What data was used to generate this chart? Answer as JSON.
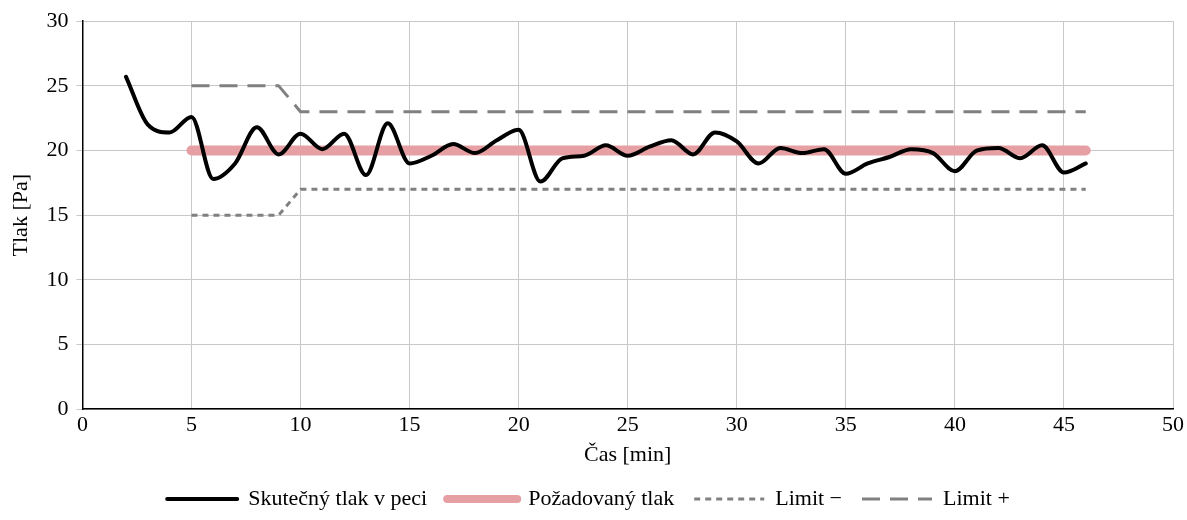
{
  "chart_data": {
    "type": "line",
    "xlabel": "Čas [min]",
    "ylabel": "Tlak [Pa]",
    "xlim": [
      0,
      50
    ],
    "xticks": [
      0,
      5,
      10,
      15,
      20,
      25,
      30,
      35,
      40,
      45,
      50
    ],
    "ylim": [
      0,
      30
    ],
    "yticks": [
      0,
      5,
      10,
      15,
      20,
      25,
      30
    ],
    "grid": true,
    "legend": "bottom",
    "marker": "none",
    "series": [
      {
        "name": "Skutečný tlak v peci",
        "color": "#000000",
        "line_style": "solid",
        "x": [
          2,
          3,
          4,
          5,
          6,
          7,
          8,
          9,
          10,
          11,
          12,
          13,
          14,
          15,
          16,
          17,
          18,
          19,
          20,
          21,
          22,
          23,
          24,
          25,
          26,
          27,
          28,
          29,
          30,
          31,
          32,
          33,
          34,
          35,
          36,
          37,
          38,
          39,
          40,
          41,
          42,
          43,
          44,
          45,
          46
        ],
        "values": [
          25.7,
          22,
          21.4,
          22.6,
          17.8,
          19,
          21.8,
          19.7,
          21.3,
          20.1,
          21.3,
          18.1,
          22.1,
          19,
          19.6,
          20.5,
          19.8,
          20.8,
          21.6,
          17.6,
          19.4,
          19.6,
          20.4,
          19.6,
          20.3,
          20.8,
          19.7,
          21.4,
          20.7,
          19,
          20.2,
          19.8,
          20.1,
          18.2,
          19,
          19.5,
          20.1,
          19.8,
          18.4,
          20,
          20.2,
          19.4,
          20.4,
          18.3,
          19
        ]
      },
      {
        "name": "Požadovaný tlak",
        "color": "#e6a0a3",
        "line_style": "solid",
        "x": [
          5,
          46
        ],
        "values": [
          20,
          20
        ]
      },
      {
        "name": "Limit −",
        "color": "#808080",
        "line_style": "dotted",
        "x": [
          5,
          9,
          10,
          46
        ],
        "values": [
          15,
          15,
          17,
          17
        ]
      },
      {
        "name": "Limit +",
        "color": "#808080",
        "line_style": "dashed",
        "x": [
          5,
          9,
          10,
          46
        ],
        "values": [
          25,
          25,
          23,
          23
        ]
      }
    ]
  }
}
